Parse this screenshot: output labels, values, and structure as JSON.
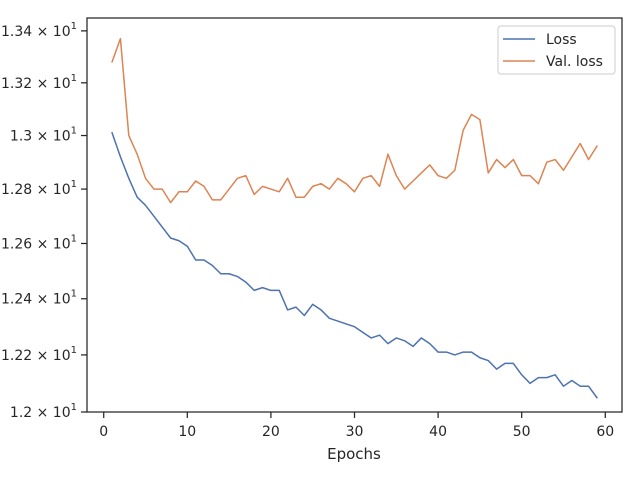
{
  "chart_data": {
    "type": "line",
    "xlabel": "Epochs",
    "ylabel": "",
    "xlim": [
      -2,
      62
    ],
    "ylim": [
      12.0,
      13.45
    ],
    "yscale": "log",
    "grid": false,
    "legend_position": "top-right",
    "x_ticks": [
      0,
      10,
      20,
      30,
      40,
      50,
      60
    ],
    "x_tick_labels": [
      "0",
      "10",
      "20",
      "30",
      "40",
      "50",
      "60"
    ],
    "y_ticks": [
      12.0,
      12.2,
      12.4,
      12.6,
      12.8,
      13.0,
      13.2,
      13.4
    ],
    "y_tick_labels": [
      {
        "mant": "1.2",
        "exp": "1"
      },
      {
        "mant": "1.22",
        "exp": "1"
      },
      {
        "mant": "1.24",
        "exp": "1"
      },
      {
        "mant": "1.26",
        "exp": "1"
      },
      {
        "mant": "1.28",
        "exp": "1"
      },
      {
        "mant": "1.3",
        "exp": "1"
      },
      {
        "mant": "1.32",
        "exp": "1"
      },
      {
        "mant": "1.34",
        "exp": "1"
      }
    ],
    "x": [
      1,
      2,
      3,
      4,
      5,
      6,
      7,
      8,
      9,
      10,
      11,
      12,
      13,
      14,
      15,
      16,
      17,
      18,
      19,
      20,
      21,
      22,
      23,
      24,
      25,
      26,
      27,
      28,
      29,
      30,
      31,
      32,
      33,
      34,
      35,
      36,
      37,
      38,
      39,
      40,
      41,
      42,
      43,
      44,
      45,
      46,
      47,
      48,
      49,
      50,
      51,
      52,
      53,
      54,
      55,
      56,
      57,
      58,
      59
    ],
    "series": [
      {
        "name": "Loss",
        "color": "#4c72b0",
        "values": [
          13.01,
          12.92,
          12.84,
          12.77,
          12.74,
          12.7,
          12.66,
          12.62,
          12.61,
          12.59,
          12.54,
          12.54,
          12.52,
          12.49,
          12.49,
          12.48,
          12.46,
          12.43,
          12.44,
          12.43,
          12.43,
          12.36,
          12.37,
          12.34,
          12.38,
          12.36,
          12.33,
          12.32,
          12.31,
          12.3,
          12.28,
          12.26,
          12.27,
          12.24,
          12.26,
          12.25,
          12.23,
          12.26,
          12.24,
          12.21,
          12.21,
          12.2,
          12.21,
          12.21,
          12.19,
          12.18,
          12.15,
          12.17,
          12.17,
          12.13,
          12.1,
          12.12,
          12.12,
          12.13,
          12.09,
          12.11,
          12.09,
          12.09,
          12.05
        ]
      },
      {
        "name": "Val. loss",
        "color": "#dd8452",
        "values": [
          13.28,
          13.37,
          13.0,
          12.93,
          12.84,
          12.8,
          12.8,
          12.75,
          12.79,
          12.79,
          12.83,
          12.81,
          12.76,
          12.76,
          12.8,
          12.84,
          12.85,
          12.78,
          12.81,
          12.8,
          12.79,
          12.84,
          12.77,
          12.77,
          12.81,
          12.82,
          12.8,
          12.84,
          12.82,
          12.79,
          12.84,
          12.85,
          12.81,
          12.93,
          12.85,
          12.8,
          12.83,
          12.86,
          12.89,
          12.85,
          12.84,
          12.87,
          13.02,
          13.08,
          13.06,
          12.86,
          12.91,
          12.88,
          12.91,
          12.85,
          12.85,
          12.82,
          12.9,
          12.91,
          12.87,
          12.92,
          12.97,
          12.91,
          12.96
        ]
      }
    ]
  }
}
